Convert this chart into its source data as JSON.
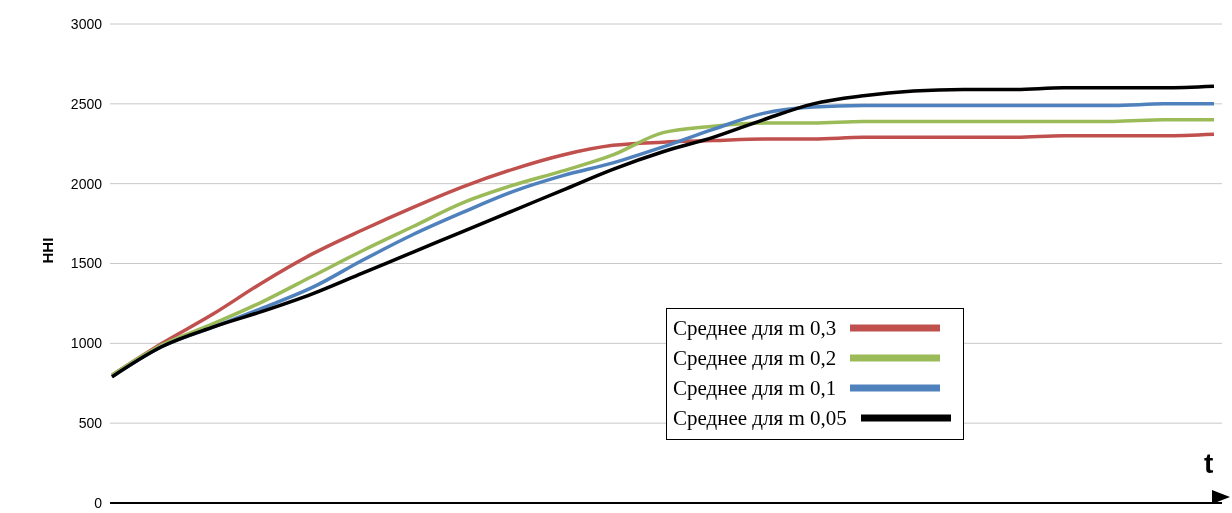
{
  "chart_data": {
    "type": "line",
    "ylabel": "HHI",
    "xlabel": "t",
    "categories": [
      null,
      null,
      null,
      null,
      null,
      null,
      null,
      null,
      null,
      null,
      null,
      null,
      null,
      null,
      null,
      null,
      null,
      null,
      null,
      null,
      null,
      null,
      null
    ],
    "series": [
      {
        "name": "Среднее для m 0,3",
        "color": "#c0504d",
        "values": [
          800,
          1000,
          1180,
          1380,
          1560,
          1710,
          1850,
          1980,
          2090,
          2180,
          2240,
          2260,
          2270,
          2280,
          2280,
          2290,
          2290,
          2290,
          2290,
          2300,
          2300,
          2300,
          2310
        ]
      },
      {
        "name": "Среднее для m 0,2",
        "color": "#9bbb59",
        "values": [
          800,
          990,
          1120,
          1260,
          1420,
          1580,
          1730,
          1880,
          1990,
          2080,
          2180,
          2320,
          2360,
          2380,
          2380,
          2390,
          2390,
          2390,
          2390,
          2390,
          2390,
          2400,
          2400
        ]
      },
      {
        "name": "Среднее для m 0,1",
        "color": "#4f81bd",
        "values": [
          790,
          980,
          1100,
          1220,
          1350,
          1520,
          1680,
          1820,
          1950,
          2050,
          2130,
          2230,
          2340,
          2440,
          2480,
          2490,
          2490,
          2490,
          2490,
          2490,
          2490,
          2500,
          2500
        ]
      },
      {
        "name": "Среднее для m 0,05",
        "color": "#000000",
        "values": [
          790,
          980,
          1100,
          1200,
          1310,
          1440,
          1570,
          1700,
          1830,
          1960,
          2090,
          2200,
          2290,
          2400,
          2500,
          2550,
          2580,
          2590,
          2590,
          2600,
          2600,
          2600,
          2610
        ]
      }
    ],
    "ylim": [
      0,
      3000
    ],
    "yticks": [
      0,
      500,
      1000,
      1500,
      2000,
      2500,
      3000
    ],
    "grid": "y",
    "legend": "bottom right",
    "tick_labels": "y",
    "marker": "none",
    "line_style": "solid"
  }
}
